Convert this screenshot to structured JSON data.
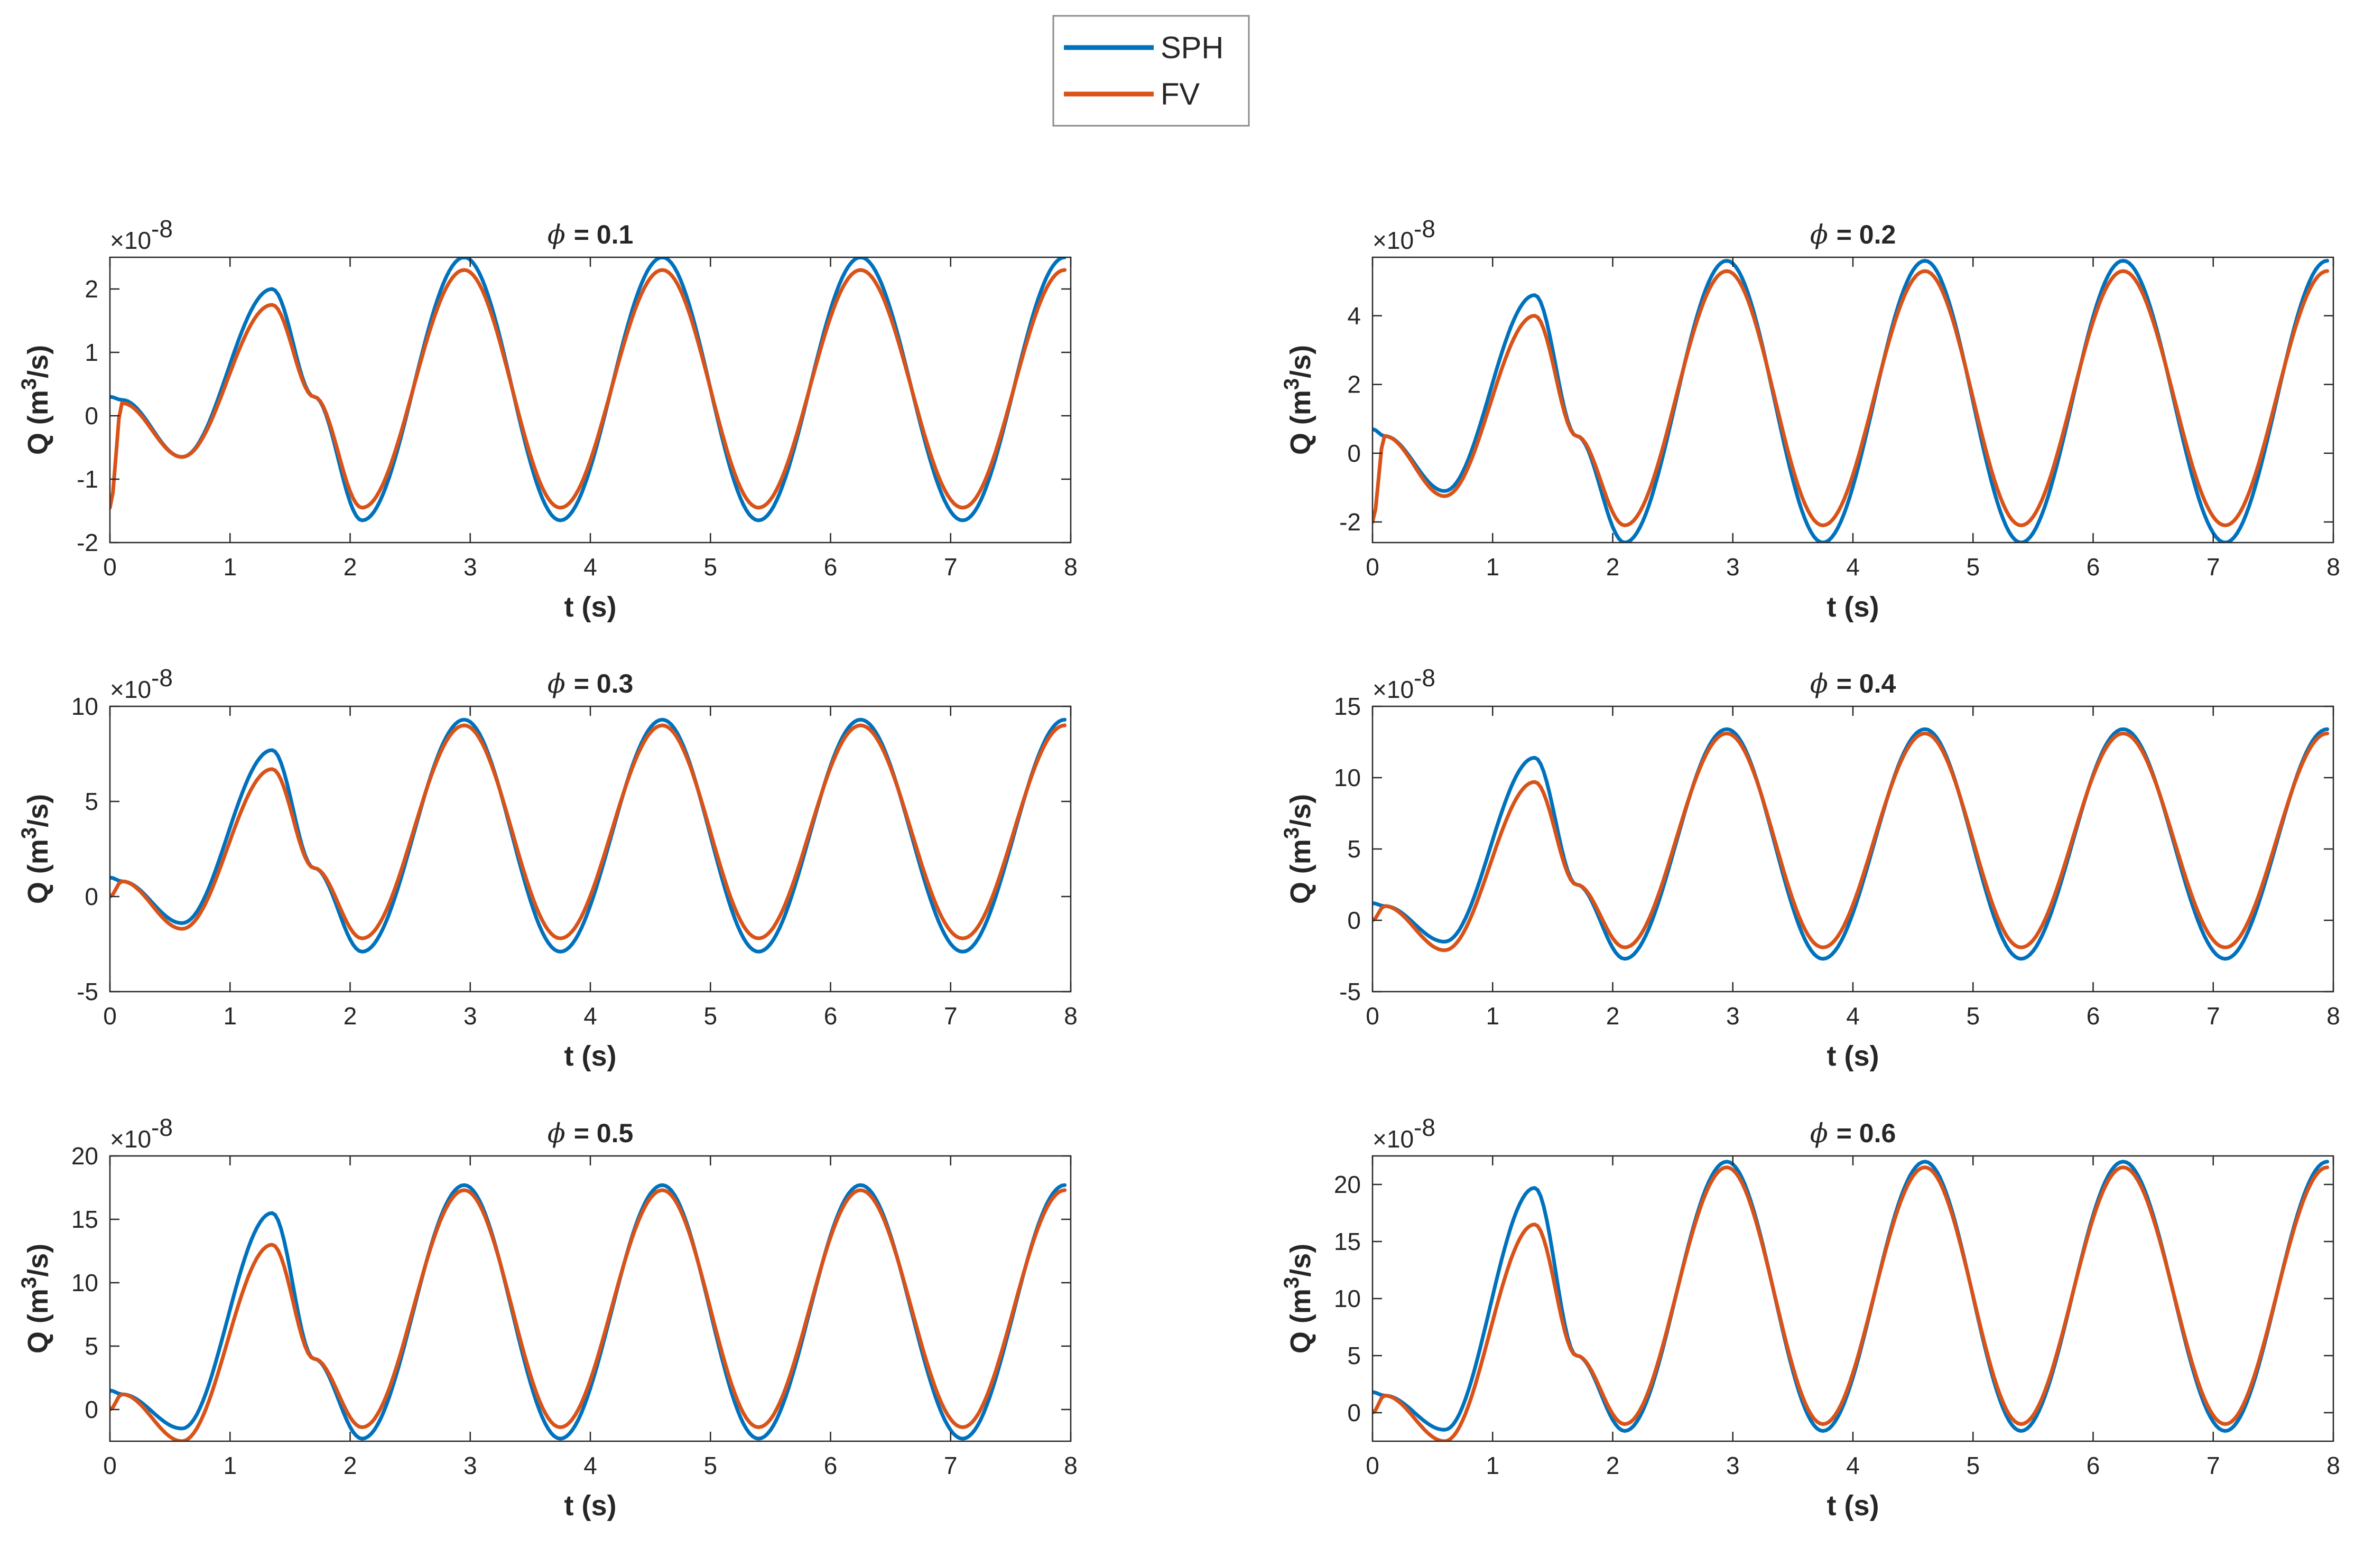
{
  "chart_data": {
    "type": "line",
    "legend": {
      "position": "top-center",
      "entries": [
        {
          "name": "SPH",
          "color": "#0072BD"
        },
        {
          "name": "FV",
          "color": "#D95319"
        }
      ]
    },
    "xlabel": "t (s)",
    "ylabel": "Q (m3/s)",
    "xlim": [
      0,
      8
    ],
    "xticks": [
      0,
      1,
      2,
      3,
      4,
      5,
      6,
      7,
      8
    ],
    "exponent_label": "×10^-8",
    "grid": false,
    "panels": [
      {
        "title_symbol": "ϕ",
        "title_value": "= 0.1",
        "ylim": [
          -2,
          2.5
        ],
        "yticks": [
          -2,
          -1,
          0,
          1,
          2
        ],
        "series": [
          {
            "name": "SPH",
            "x": [
              0,
              0.1,
              0.6,
              1.35,
              1.7,
              2.1,
              2.95,
              3.75,
              4.6,
              5.4,
              6.25,
              7.1,
              7.95
            ],
            "y": [
              0.3,
              0.25,
              -0.65,
              2.0,
              0.3,
              -1.65,
              2.5,
              -1.65,
              2.5,
              -1.65,
              2.5,
              -1.65,
              2.5
            ]
          },
          {
            "name": "FV",
            "x": [
              0,
              0.1,
              0.6,
              1.35,
              1.7,
              2.1,
              2.95,
              3.75,
              4.6,
              5.4,
              6.25,
              7.1,
              7.95
            ],
            "y": [
              -1.45,
              0.2,
              -0.65,
              1.75,
              0.3,
              -1.45,
              2.3,
              -1.45,
              2.3,
              -1.45,
              2.3,
              -1.45,
              2.3
            ]
          }
        ]
      },
      {
        "title_symbol": "ϕ",
        "title_value": "= 0.2",
        "ylim": [
          -2.6,
          5.7
        ],
        "yticks": [
          -2,
          0,
          2,
          4
        ],
        "series": [
          {
            "name": "SPH",
            "x": [
              0,
              0.1,
              0.6,
              1.35,
              1.7,
              2.1,
              2.95,
              3.75,
              4.6,
              5.4,
              6.25,
              7.1,
              7.95
            ],
            "y": [
              0.7,
              0.5,
              -1.1,
              4.6,
              0.5,
              -2.6,
              5.6,
              -2.6,
              5.6,
              -2.6,
              5.6,
              -2.6,
              5.6
            ]
          },
          {
            "name": "FV",
            "x": [
              0,
              0.1,
              0.6,
              1.35,
              1.7,
              2.1,
              2.95,
              3.75,
              4.6,
              5.4,
              6.25,
              7.1,
              7.95
            ],
            "y": [
              -2.0,
              0.5,
              -1.25,
              4.0,
              0.5,
              -2.1,
              5.3,
              -2.1,
              5.3,
              -2.1,
              5.3,
              -2.1,
              5.3
            ]
          }
        ]
      },
      {
        "title_symbol": "ϕ",
        "title_value": "= 0.3",
        "ylim": [
          -5,
          10
        ],
        "yticks": [
          -5,
          0,
          5,
          10
        ],
        "series": [
          {
            "name": "SPH",
            "x": [
              0,
              0.1,
              0.6,
              1.35,
              1.7,
              2.1,
              2.95,
              3.75,
              4.6,
              5.4,
              6.25,
              7.1,
              7.95
            ],
            "y": [
              1.0,
              0.8,
              -1.4,
              7.7,
              1.5,
              -2.9,
              9.3,
              -2.9,
              9.3,
              -2.9,
              9.3,
              -2.9,
              9.3
            ]
          },
          {
            "name": "FV",
            "x": [
              0,
              0.1,
              0.6,
              1.35,
              1.7,
              2.1,
              2.95,
              3.75,
              4.6,
              5.4,
              6.25,
              7.1,
              7.95
            ],
            "y": [
              0.0,
              0.8,
              -1.7,
              6.7,
              1.5,
              -2.2,
              9.0,
              -2.2,
              9.0,
              -2.2,
              9.0,
              -2.2,
              9.0
            ]
          }
        ]
      },
      {
        "title_symbol": "ϕ",
        "title_value": "= 0.4",
        "ylim": [
          -5,
          15
        ],
        "yticks": [
          -5,
          0,
          5,
          10,
          15
        ],
        "series": [
          {
            "name": "SPH",
            "x": [
              0,
              0.1,
              0.6,
              1.35,
              1.7,
              2.1,
              2.95,
              3.75,
              4.6,
              5.4,
              6.25,
              7.1,
              7.95
            ],
            "y": [
              1.2,
              1.0,
              -1.5,
              11.4,
              2.5,
              -2.7,
              13.4,
              -2.7,
              13.4,
              -2.7,
              13.4,
              -2.7,
              13.4
            ]
          },
          {
            "name": "FV",
            "x": [
              0,
              0.1,
              0.6,
              1.35,
              1.7,
              2.1,
              2.95,
              3.75,
              4.6,
              5.4,
              6.25,
              7.1,
              7.95
            ],
            "y": [
              0.0,
              1.0,
              -2.1,
              9.7,
              2.5,
              -1.9,
              13.1,
              -1.9,
              13.1,
              -1.9,
              13.1,
              -1.9,
              13.1
            ]
          }
        ]
      },
      {
        "title_symbol": "ϕ",
        "title_value": "= 0.5",
        "ylim": [
          -2.5,
          20
        ],
        "yticks": [
          0,
          5,
          10,
          15,
          20
        ],
        "series": [
          {
            "name": "SPH",
            "x": [
              0,
              0.1,
              0.6,
              1.35,
              1.7,
              2.1,
              2.95,
              3.75,
              4.6,
              5.4,
              6.25,
              7.1,
              7.95
            ],
            "y": [
              1.5,
              1.2,
              -1.5,
              15.5,
              4.0,
              -2.3,
              17.7,
              -2.3,
              17.7,
              -2.3,
              17.7,
              -2.3,
              17.7
            ]
          },
          {
            "name": "FV",
            "x": [
              0,
              0.1,
              0.6,
              1.35,
              1.7,
              2.1,
              2.95,
              3.75,
              4.6,
              5.4,
              6.25,
              7.1,
              7.95
            ],
            "y": [
              0.0,
              1.2,
              -2.5,
              13.0,
              4.0,
              -1.4,
              17.3,
              -1.4,
              17.3,
              -1.4,
              17.3,
              -1.4,
              17.3
            ]
          }
        ]
      },
      {
        "title_symbol": "ϕ",
        "title_value": "= 0.6",
        "ylim": [
          -2.5,
          22.5
        ],
        "yticks": [
          0,
          5,
          10,
          15,
          20
        ],
        "series": [
          {
            "name": "SPH",
            "x": [
              0,
              0.1,
              0.6,
              1.35,
              1.7,
              2.1,
              2.95,
              3.75,
              4.6,
              5.4,
              6.25,
              7.1,
              7.95
            ],
            "y": [
              1.8,
              1.5,
              -1.5,
              19.7,
              5.0,
              -1.6,
              22.0,
              -1.6,
              22.0,
              -1.6,
              22.0,
              -1.6,
              22.0
            ]
          },
          {
            "name": "FV",
            "x": [
              0,
              0.1,
              0.6,
              1.35,
              1.7,
              2.1,
              2.95,
              3.75,
              4.6,
              5.4,
              6.25,
              7.1,
              7.95
            ],
            "y": [
              0.0,
              1.5,
              -2.5,
              16.5,
              5.0,
              -1.0,
              21.5,
              -1.0,
              21.5,
              -1.0,
              21.5,
              -1.0,
              21.5
            ]
          }
        ]
      }
    ]
  }
}
